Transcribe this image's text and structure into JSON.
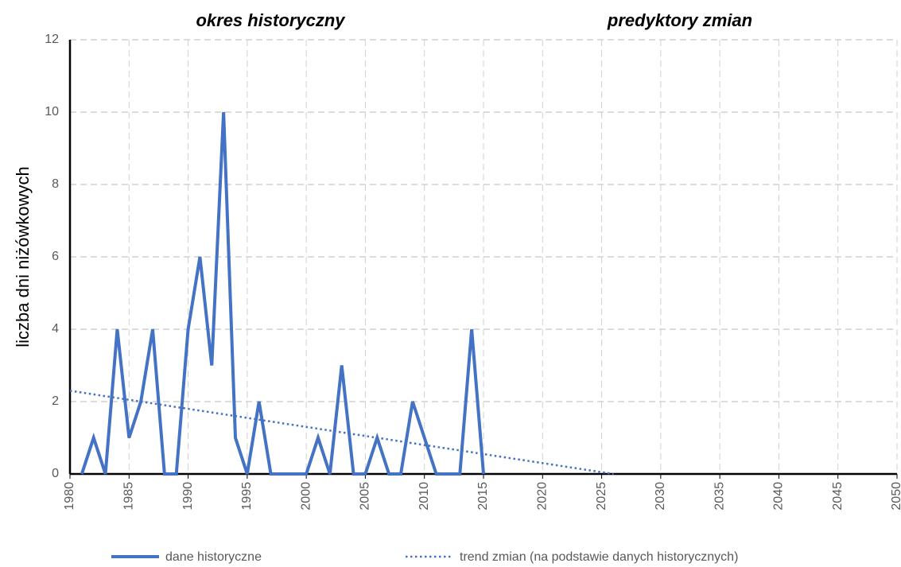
{
  "chart_data": {
    "type": "line",
    "ylabel": "liczba dni niżówkowych",
    "annotations": [
      "okres historyczny",
      "predyktory zmian"
    ],
    "xlim": [
      1980,
      2050
    ],
    "xticks": [
      1980,
      1985,
      1990,
      1995,
      2000,
      2005,
      2010,
      2015,
      2020,
      2025,
      2030,
      2035,
      2040,
      2045,
      2050
    ],
    "ylim": [
      0,
      12
    ],
    "yticks": [
      0,
      2,
      4,
      6,
      8,
      10,
      12
    ],
    "grid": true,
    "series": [
      {
        "name": "dane historyczne",
        "color": "#4472c4",
        "style": "solid",
        "x": [
          1981,
          1982,
          1983,
          1984,
          1985,
          1986,
          1987,
          1988,
          1989,
          1990,
          1991,
          1992,
          1993,
          1994,
          1995,
          1996,
          1997,
          1998,
          1999,
          2000,
          2001,
          2002,
          2003,
          2004,
          2005,
          2006,
          2007,
          2008,
          2009,
          2010,
          2011,
          2012,
          2013,
          2014,
          2015
        ],
        "values": [
          0,
          1,
          0,
          4,
          1,
          2,
          4,
          0,
          0,
          4,
          6,
          3,
          10,
          1,
          0,
          2,
          0,
          0,
          0,
          0,
          1,
          0,
          3,
          0,
          0,
          1,
          0,
          0,
          2,
          1,
          0,
          0,
          0,
          4,
          0
        ]
      },
      {
        "name": "trend zmian (na podstawie danych historycznych)",
        "color": "#4472c4",
        "style": "dotted",
        "x": [
          1980,
          2026
        ],
        "values": [
          2.3,
          0
        ]
      }
    ]
  }
}
